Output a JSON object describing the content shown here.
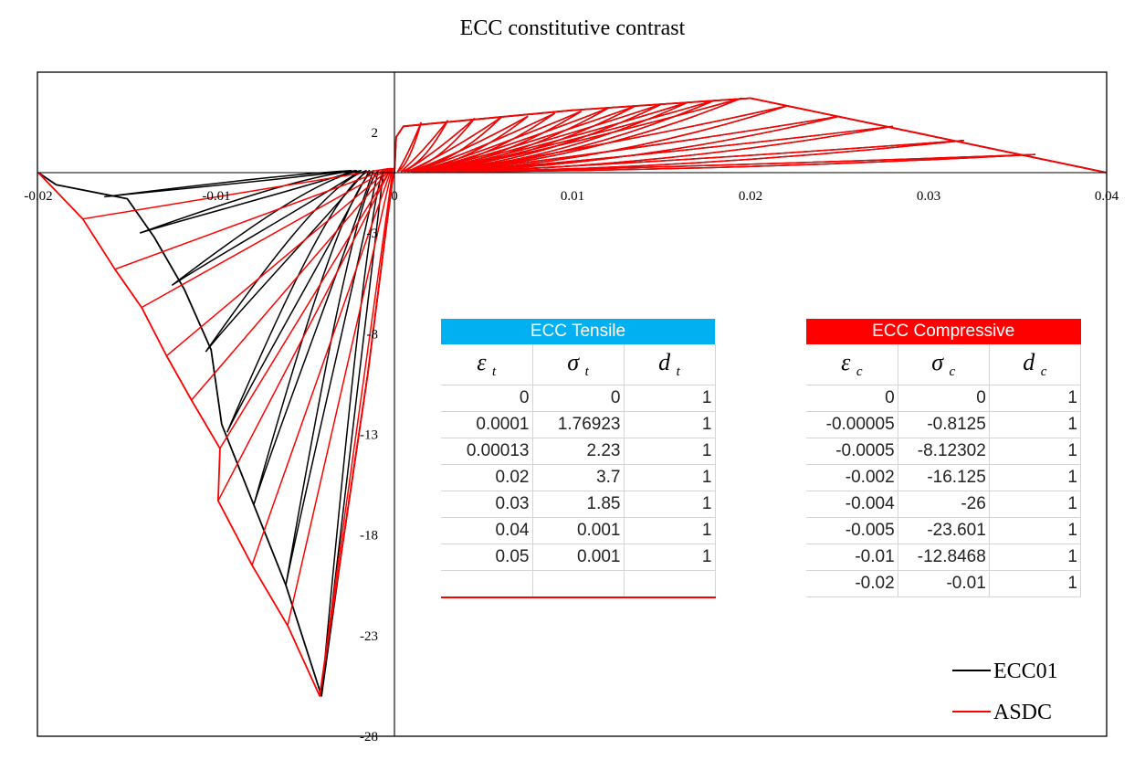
{
  "chart_data": {
    "type": "line",
    "title": "ECC constitutive contrast",
    "xlabel": "",
    "ylabel": "",
    "xlim": [
      -0.02,
      0.04
    ],
    "ylim": [
      -28,
      5
    ],
    "x_ticks": [
      "-0.02",
      "-0.01",
      "0",
      "0.01",
      "0.02",
      "0.03",
      "0.04"
    ],
    "y_ticks": [
      "2",
      "-3",
      "-8",
      "-13",
      "-18",
      "-23",
      "-28"
    ],
    "grid": false,
    "legend": "bottom-right",
    "series": [
      {
        "name": "ECC01",
        "color": "#000000",
        "envelope": [
          [
            -0.02,
            0
          ],
          [
            -0.019,
            -0.6
          ],
          [
            -0.015,
            -1.3
          ],
          [
            -0.0135,
            -3.2
          ],
          [
            -0.0118,
            -5.8
          ],
          [
            -0.0103,
            -8.8
          ],
          [
            -0.0097,
            -12.5
          ],
          [
            -0.0079,
            -16.5
          ],
          [
            -0.0061,
            -20.5
          ],
          [
            -0.0041,
            -26
          ],
          [
            -0.003,
            -19
          ],
          [
            -0.0015,
            -10
          ],
          [
            -0.0005,
            -3
          ],
          [
            -0.0001,
            -0.3
          ],
          [
            0,
            0
          ],
          [
            0.0001,
            1.76923
          ],
          [
            0.0005,
            2.3
          ],
          [
            0.004,
            2.6
          ],
          [
            0.01,
            3.1
          ],
          [
            0.02,
            3.7
          ],
          [
            0.03,
            1.85
          ],
          [
            0.04,
            0.001
          ]
        ],
        "tension_unload_peaks": [
          [
            0.0015,
            2.5
          ],
          [
            0.003,
            2.6
          ],
          [
            0.0045,
            2.7
          ],
          [
            0.006,
            2.75
          ],
          [
            0.0075,
            2.8
          ],
          [
            0.009,
            2.95
          ],
          [
            0.0105,
            3.05
          ],
          [
            0.012,
            3.2
          ],
          [
            0.0135,
            3.3
          ],
          [
            0.015,
            3.4
          ],
          [
            0.0165,
            3.5
          ],
          [
            0.018,
            3.6
          ],
          [
            0.0195,
            3.7
          ],
          [
            0.022,
            3.3
          ],
          [
            0.025,
            2.8
          ],
          [
            0.028,
            2.3
          ],
          [
            0.032,
            1.6
          ],
          [
            0.036,
            0.9
          ]
        ],
        "compression_unload_peaks": [
          [
            -0.0163,
            -1.2
          ],
          [
            -0.0143,
            -3
          ],
          [
            -0.0125,
            -5.6
          ],
          [
            -0.0106,
            -8.9
          ],
          [
            -0.0094,
            -12.9
          ],
          [
            -0.0079,
            -16.5
          ],
          [
            -0.0061,
            -20.5
          ],
          [
            -0.0041,
            -26
          ]
        ]
      },
      {
        "name": "ASDC",
        "color": "#ff0000",
        "envelope": [
          [
            -0.02,
            0
          ],
          [
            -0.0175,
            -2.3
          ],
          [
            -0.0157,
            -4.8
          ],
          [
            -0.0142,
            -6.7
          ],
          [
            -0.0128,
            -9.1
          ],
          [
            -0.0114,
            -11.3
          ],
          [
            -0.0098,
            -13.7
          ],
          [
            -0.0099,
            -16.3
          ],
          [
            -0.008,
            -19.5
          ],
          [
            -0.006,
            -22.5
          ],
          [
            -0.0042,
            -26
          ],
          [
            -0.003,
            -19
          ],
          [
            -0.0015,
            -10
          ],
          [
            -0.0005,
            -3
          ],
          [
            -0.0001,
            -0.3
          ],
          [
            0,
            0
          ],
          [
            0.0001,
            1.76923
          ],
          [
            0.0005,
            2.3
          ],
          [
            0.004,
            2.6
          ],
          [
            0.01,
            3.1
          ],
          [
            0.02,
            3.7
          ],
          [
            0.03,
            1.85
          ],
          [
            0.04,
            0.001
          ]
        ],
        "tension_unload_peaks": [
          [
            0.0015,
            2.5
          ],
          [
            0.003,
            2.6
          ],
          [
            0.0045,
            2.7
          ],
          [
            0.006,
            2.75
          ],
          [
            0.0075,
            2.8
          ],
          [
            0.009,
            2.95
          ],
          [
            0.0105,
            3.05
          ],
          [
            0.012,
            3.2
          ],
          [
            0.0135,
            3.3
          ],
          [
            0.015,
            3.4
          ],
          [
            0.0165,
            3.5
          ],
          [
            0.018,
            3.6
          ],
          [
            0.0195,
            3.7
          ],
          [
            0.022,
            3.3
          ],
          [
            0.025,
            2.8
          ],
          [
            0.028,
            2.3
          ],
          [
            0.032,
            1.6
          ],
          [
            0.036,
            0.9
          ]
        ],
        "compression_unload_peaks": [
          [
            -0.0175,
            -2.3
          ],
          [
            -0.0157,
            -4.8
          ],
          [
            -0.0142,
            -6.7
          ],
          [
            -0.0128,
            -9.1
          ],
          [
            -0.0114,
            -11.3
          ],
          [
            -0.0098,
            -13.7
          ],
          [
            -0.0099,
            -16.3
          ],
          [
            -0.008,
            -19.5
          ],
          [
            -0.006,
            -22.5
          ],
          [
            -0.0042,
            -26
          ]
        ]
      }
    ]
  },
  "tables": {
    "tensile": {
      "title": "ECC Tensile",
      "headers": [
        {
          "sym": "ε",
          "sub": "t"
        },
        {
          "sym": "σ",
          "sub": "t"
        },
        {
          "sym": "d",
          "sub": "t"
        }
      ],
      "rows": [
        [
          "0",
          "0",
          "1"
        ],
        [
          "0.0001",
          "1.76923",
          "1"
        ],
        [
          "0.00013",
          "2.23",
          "1"
        ],
        [
          "0.02",
          "3.7",
          "1"
        ],
        [
          "0.03",
          "1.85",
          "1"
        ],
        [
          "0.04",
          "0.001",
          "1"
        ],
        [
          "0.05",
          "0.001",
          "1"
        ],
        [
          "",
          "",
          ""
        ]
      ]
    },
    "compressive": {
      "title": "ECC Compressive",
      "headers": [
        {
          "sym": "ε",
          "sub": "c"
        },
        {
          "sym": "σ",
          "sub": "c"
        },
        {
          "sym": "d",
          "sub": "c"
        }
      ],
      "rows": [
        [
          "0",
          "0",
          "1"
        ],
        [
          "-0.00005",
          "-0.8125",
          "1"
        ],
        [
          "-0.0005",
          "-8.12302",
          "1"
        ],
        [
          "-0.002",
          "-16.125",
          "1"
        ],
        [
          "-0.004",
          "-26",
          "1"
        ],
        [
          "-0.005",
          "-23.601",
          "1"
        ],
        [
          "-0.01",
          "-12.8468",
          "1"
        ],
        [
          "-0.02",
          "-0.01",
          "1"
        ]
      ]
    }
  }
}
